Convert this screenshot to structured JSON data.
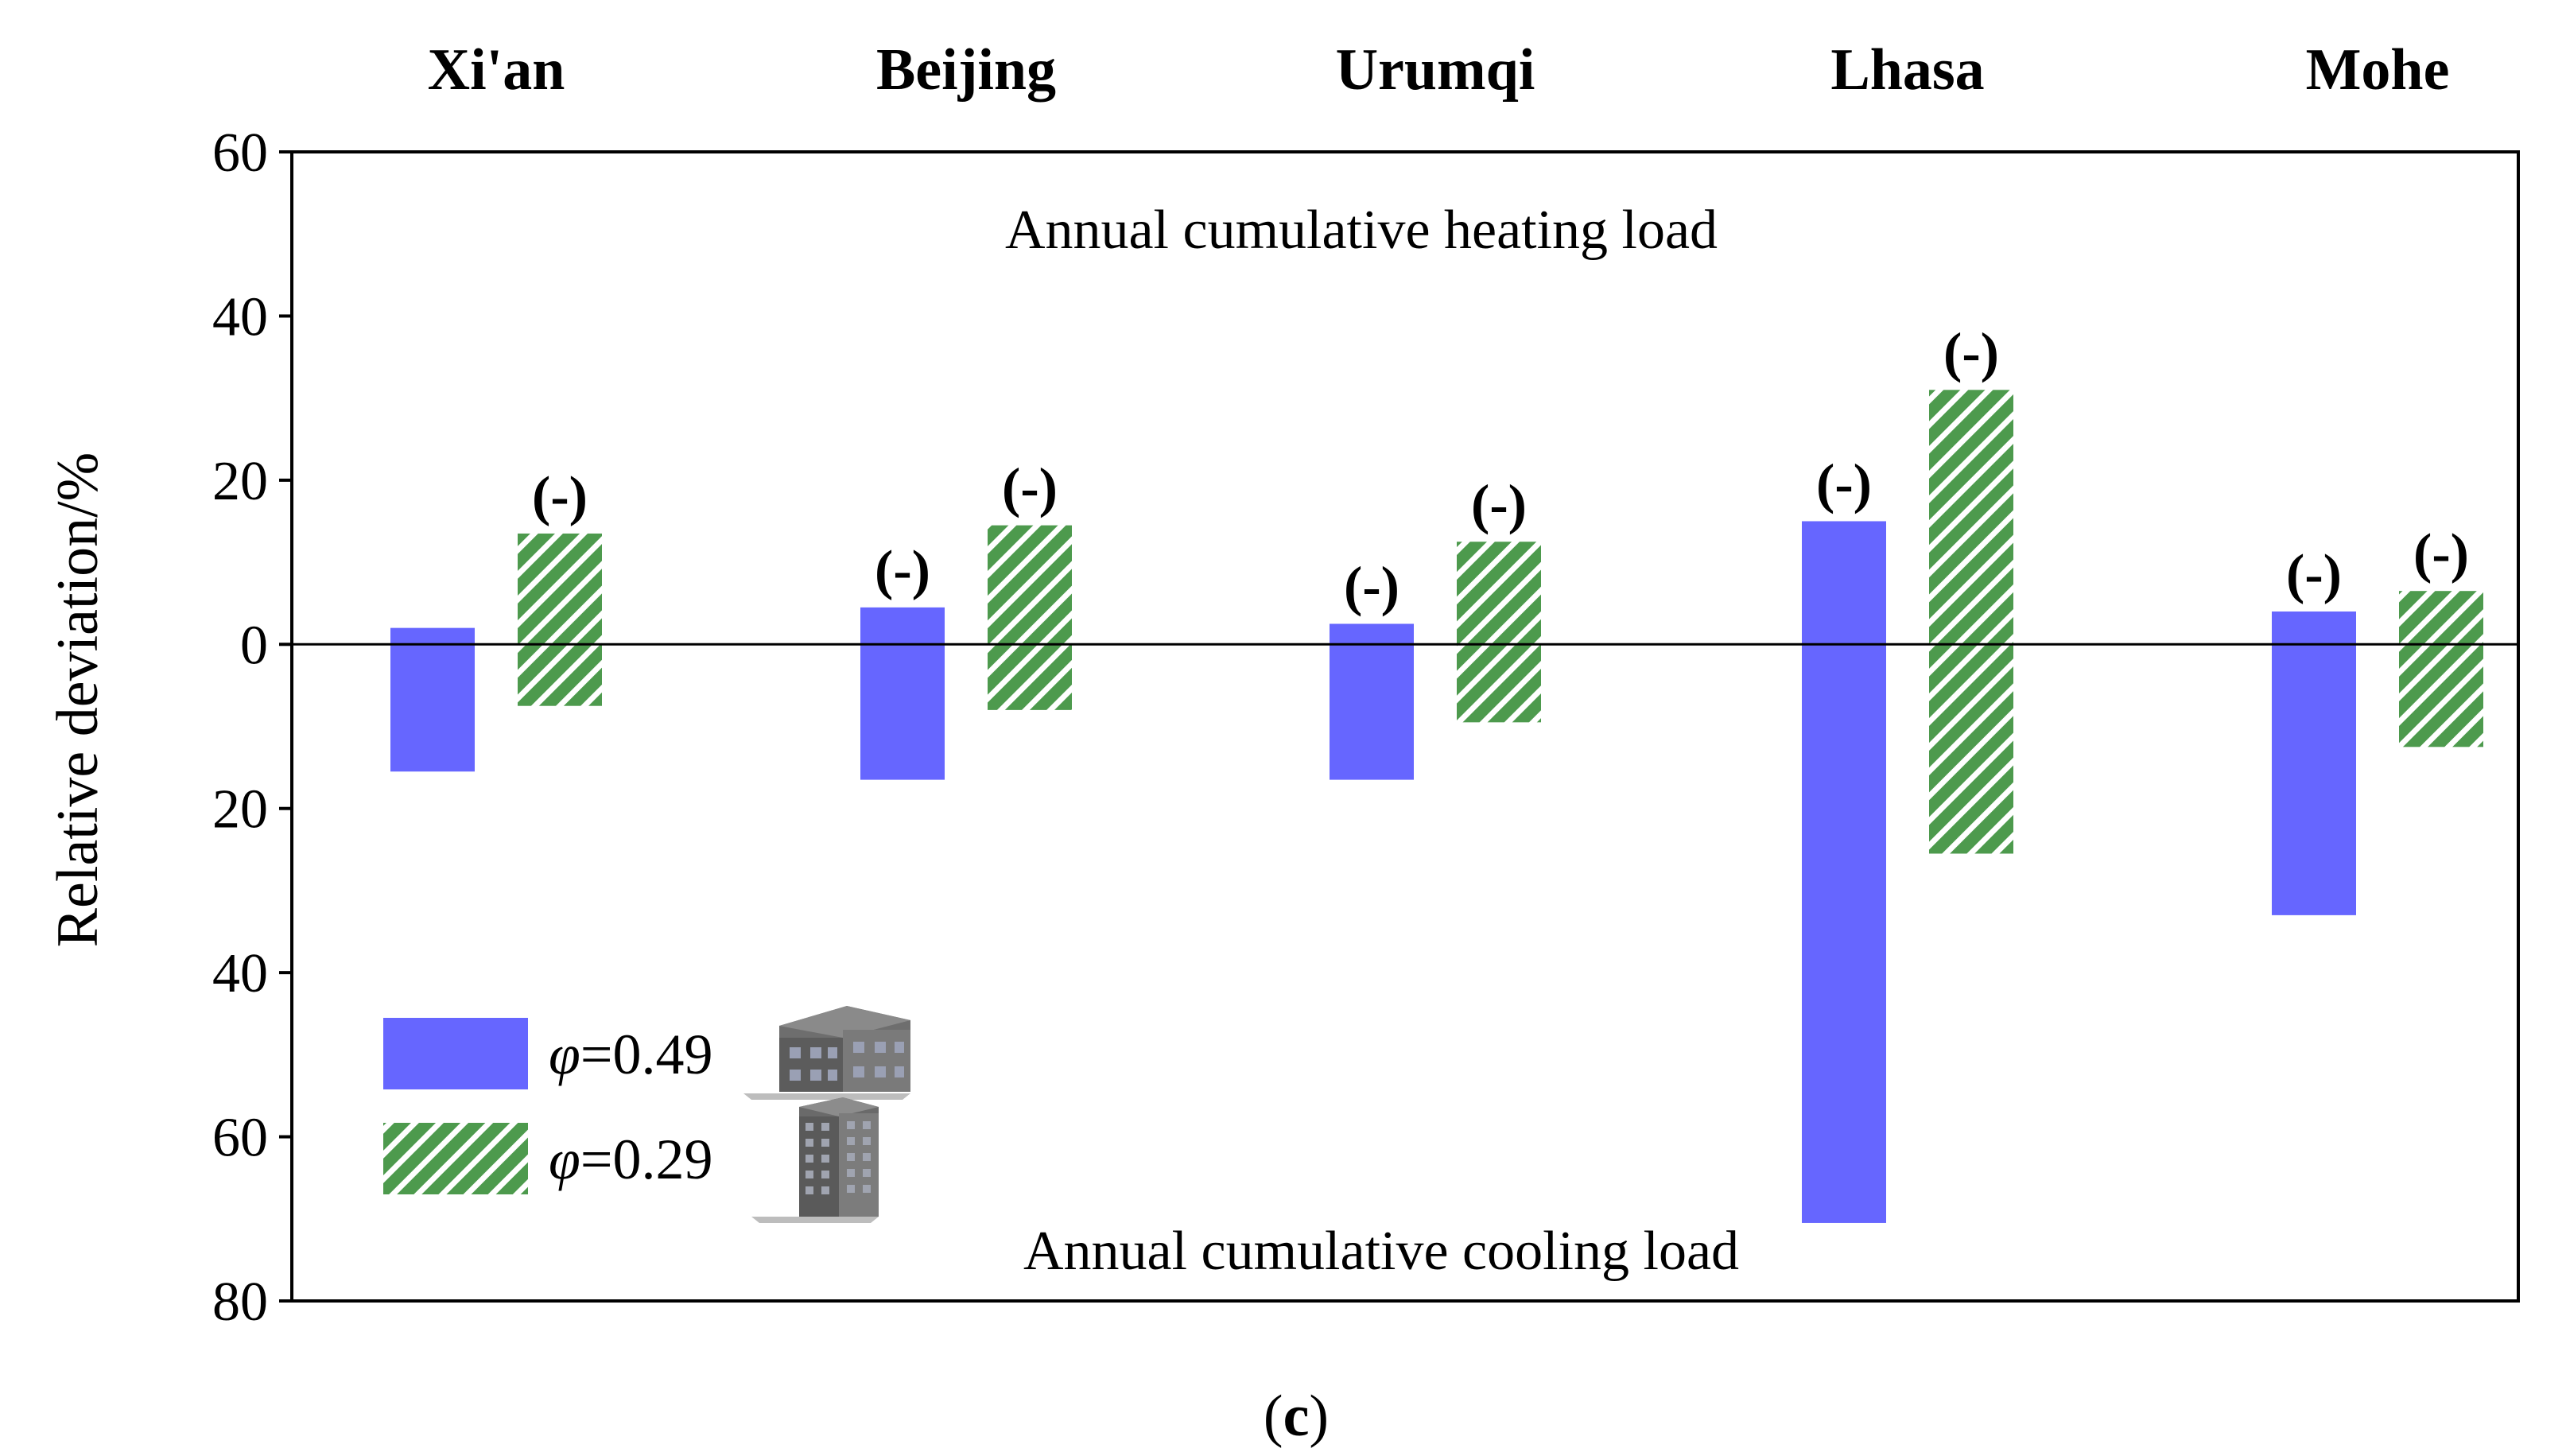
{
  "chart_data": {
    "type": "bar",
    "title": "",
    "categories": [
      "Xi'an",
      "Beijing",
      "Urumqi",
      "Lhasa",
      "Mohe"
    ],
    "ylabel": "Relative deviation/%",
    "xlabel": "",
    "ylim": [
      -80,
      60
    ],
    "yticks": [
      60,
      40,
      20,
      0,
      -20,
      -40,
      -60,
      -80
    ],
    "ytick_labels": [
      "60",
      "40",
      "20",
      "0",
      "20",
      "40",
      "60",
      "80"
    ],
    "upper_region_label": "Annual cumulative heating load",
    "lower_region_label": "Annual cumulative cooling load",
    "bar_note": "(-)",
    "series": [
      {
        "name": "φ=0.49",
        "legend_symbol": "φ",
        "legend_value": "=0.49",
        "color": "#6666ff",
        "pattern": "solid",
        "heating": [
          2,
          4.5,
          2.5,
          15,
          4
        ],
        "cooling": [
          -15.5,
          -16.5,
          -16.5,
          -70.5,
          -33
        ],
        "note_shown": [
          false,
          true,
          true,
          true,
          true
        ]
      },
      {
        "name": "φ=0.29",
        "legend_symbol": "φ",
        "legend_value": "=0.29",
        "color": "#4d9a4d",
        "pattern": "hatched",
        "heating": [
          13.5,
          14.5,
          12.5,
          31,
          6.5
        ],
        "cooling": [
          -7.5,
          -8,
          -9.5,
          -25.5,
          -12.5
        ],
        "note_shown": [
          true,
          true,
          true,
          true,
          true
        ]
      }
    ],
    "panel_label": "(c)"
  }
}
